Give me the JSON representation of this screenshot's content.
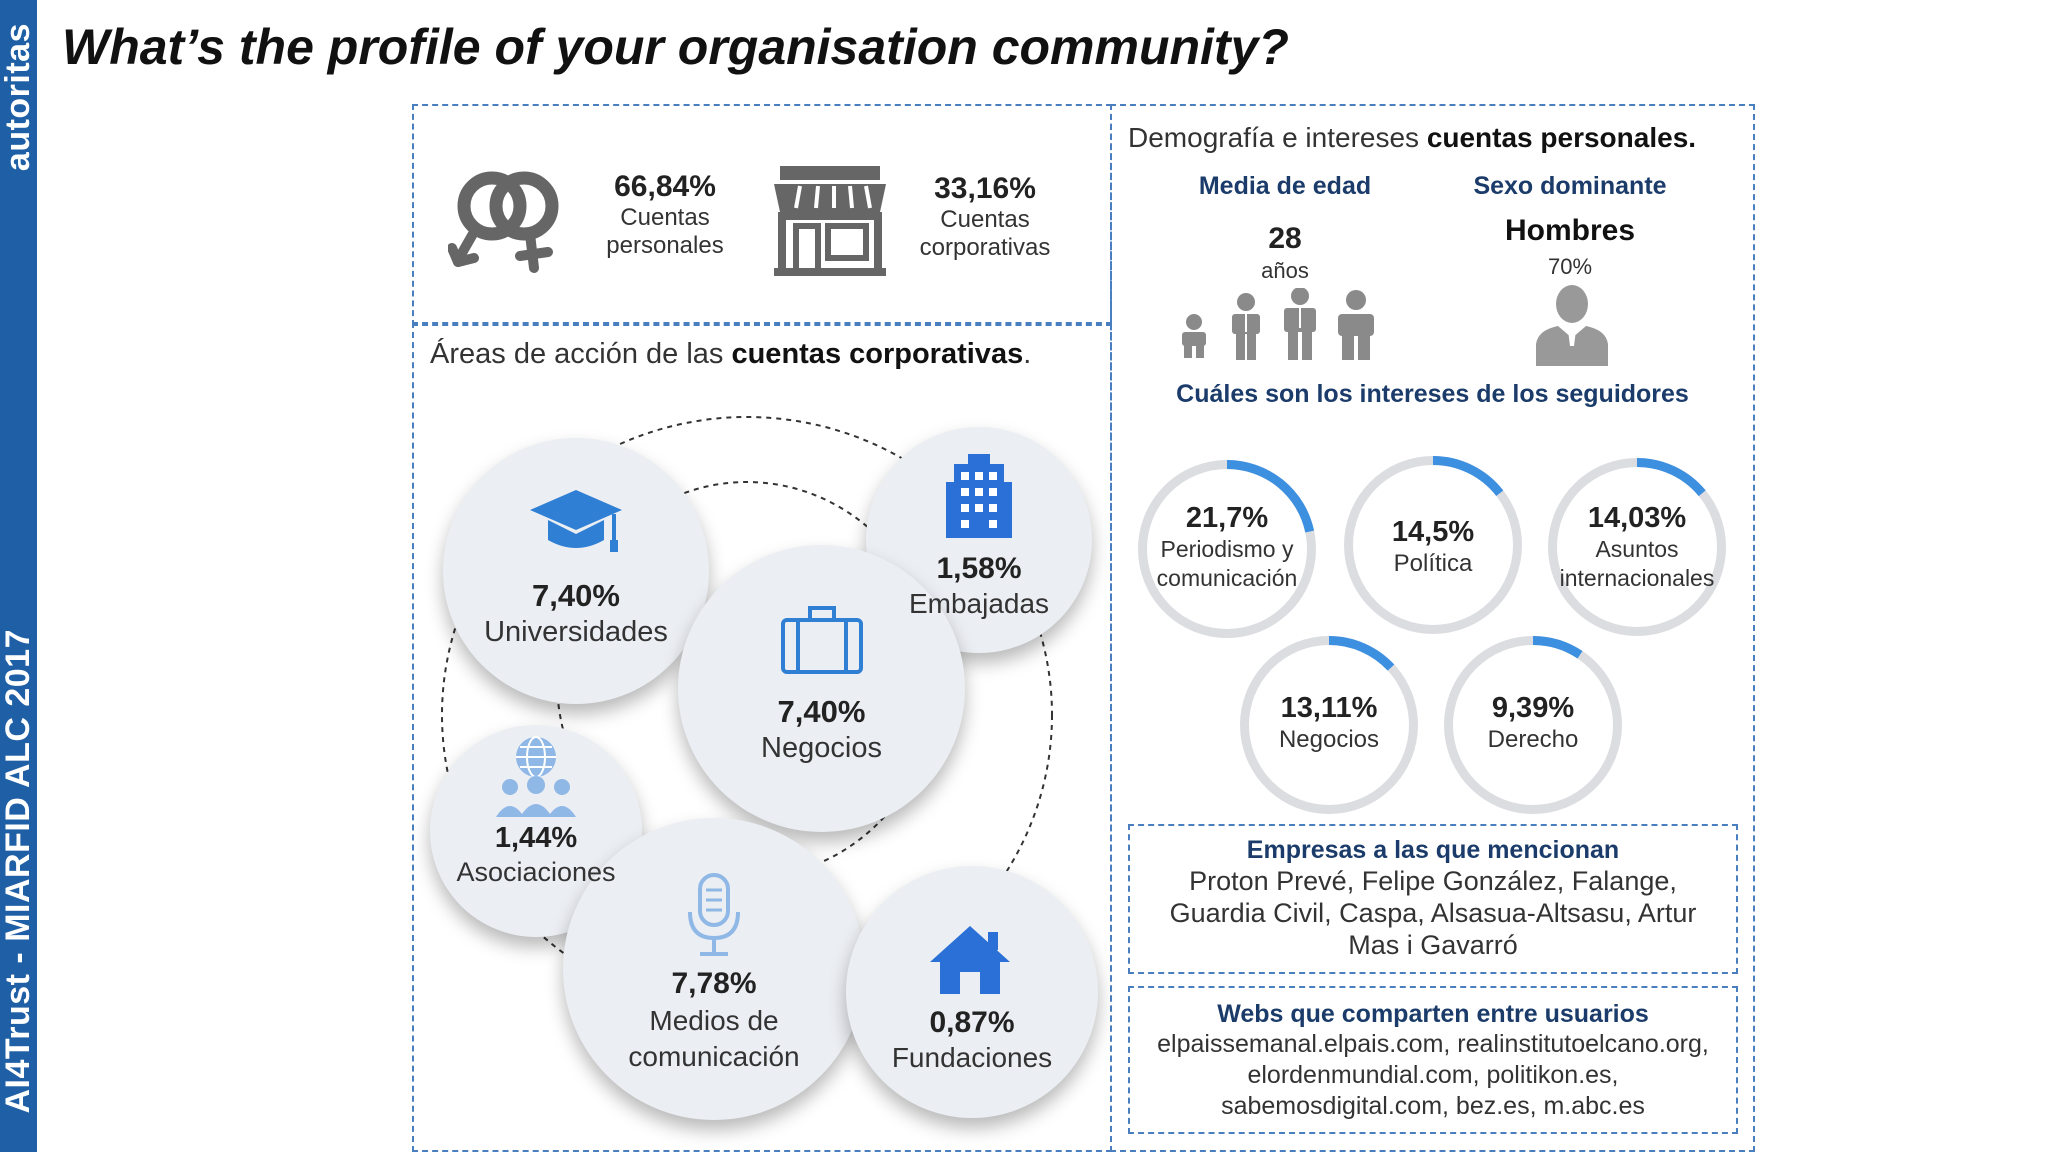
{
  "sidebar": {
    "top_text": "autoritas",
    "bottom_text": "AI4Trust - MIARFID ALC 2017"
  },
  "title": "What’s the profile of your organisation community?",
  "account_split": {
    "personal": {
      "pct": "66,84%",
      "label_1": "Cuentas",
      "label_2": "personales"
    },
    "corporate": {
      "pct": "33,16%",
      "label_1": "Cuentas",
      "label_2": "corporativas"
    }
  },
  "corporate_areas": {
    "heading_normal": "Áreas de acción de las ",
    "heading_bold": "cuentas corporativas",
    "heading_end": ".",
    "items": [
      {
        "pct": "7,40%",
        "label": "Universidades",
        "icon": "graduation-cap-icon"
      },
      {
        "pct": "1,58%",
        "label": "Embajadas",
        "icon": "building-icon"
      },
      {
        "pct": "7,40%",
        "label": "Negocios",
        "icon": "briefcase-icon"
      },
      {
        "pct": "1,44%",
        "label": "Asociaciones",
        "icon": "group-icon"
      },
      {
        "pct": "7,78%",
        "label_1": "Medios de",
        "label_2": "comunicación",
        "icon": "microphone-icon"
      },
      {
        "pct": "0,87%",
        "label": "Fundaciones",
        "icon": "house-icon"
      }
    ]
  },
  "demography": {
    "heading_normal": "Demografía e intereses ",
    "heading_bold": "cuentas personales.",
    "age": {
      "title": "Media de edad",
      "value": "28",
      "unit": "años"
    },
    "sex": {
      "title": "Sexo dominante",
      "value": "Hombres",
      "pct": "70%"
    },
    "interests_title": "Cuáles son los intereses de los seguidores",
    "interests": [
      {
        "pct": "21,7%",
        "label_1": "Periodismo y",
        "label_2": "comunicación",
        "value": 21.7
      },
      {
        "pct": "14,5%",
        "label_1": "Política",
        "label_2": "",
        "value": 14.5
      },
      {
        "pct": "14,03%",
        "label_1": "Asuntos",
        "label_2": "internacionales",
        "value": 14.03
      },
      {
        "pct": "13,11%",
        "label_1": "Negocios",
        "label_2": "",
        "value": 13.11
      },
      {
        "pct": "9,39%",
        "label_1": "Derecho",
        "label_2": "",
        "value": 9.39
      }
    ],
    "accent_color": "#3d8fe0"
  },
  "mentions": {
    "title": "Empresas a las que mencionan",
    "line_1": "Proton Prevé, Felipe González, Falange,",
    "line_2": "Guardia Civil, Caspa, Alsasua-Altsasu, Artur",
    "line_3": "Mas i Gavarró"
  },
  "webs": {
    "title": "Webs que comparten entre usuarios",
    "line_1": "elpaissemanal.elpais.com, realinstitutoelcano.org,",
    "line_2": "elordenmundial.com, politikon.es,",
    "line_3": "sabemosdigital.com, bez.es, m.abc.es"
  }
}
